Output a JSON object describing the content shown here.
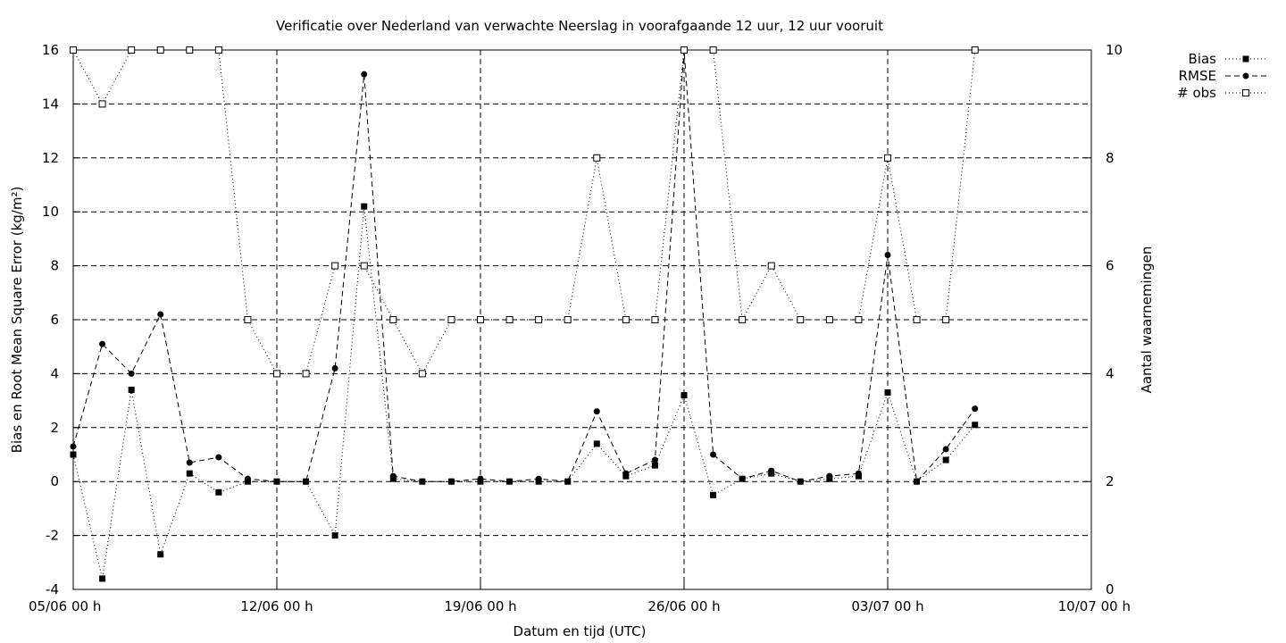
{
  "chart_data": {
    "type": "line",
    "title": "Verificatie over Nederland van verwachte Neerslag in voorafgaande 12 uur, 12 uur vooruit",
    "xlabel": "Datum en tijd (UTC)",
    "ylabel": "Bias en Root Mean Square Error (kg/m²)",
    "y2label": "Aantal waarnemingen",
    "xlim": [
      0,
      35
    ],
    "ylim": [
      -4,
      16
    ],
    "y2lim": [
      0,
      10
    ],
    "x_ticks": [
      {
        "x": 0,
        "label": "05/06 00 h"
      },
      {
        "x": 7,
        "label": "12/06 00 h"
      },
      {
        "x": 14,
        "label": "19/06 00 h"
      },
      {
        "x": 21,
        "label": "26/06 00 h"
      },
      {
        "x": 28,
        "label": "03/07 00 h"
      },
      {
        "x": 35,
        "label": "10/07 00 h"
      }
    ],
    "y_ticks": [
      -4,
      -2,
      0,
      2,
      4,
      6,
      8,
      10,
      12,
      14,
      16
    ],
    "y2_ticks": [
      0,
      2,
      4,
      6,
      8,
      10
    ],
    "grid": true,
    "legend_position": "top-right outside",
    "series": [
      {
        "name": "Bias",
        "axis": "left",
        "marker": "filled-square",
        "line": "dotted",
        "x": [
          0,
          1,
          2,
          3,
          4,
          5,
          6,
          7,
          8,
          9,
          10,
          11,
          12,
          13,
          14,
          15,
          16,
          17,
          18,
          19,
          20,
          21,
          22,
          23,
          24,
          25,
          26,
          27,
          28,
          29,
          30,
          31
        ],
        "values": [
          1.0,
          -3.6,
          3.4,
          -2.7,
          0.3,
          -0.4,
          0.0,
          0.0,
          0.0,
          -2.0,
          10.2,
          0.1,
          0.0,
          0.0,
          0.0,
          0.0,
          0.0,
          0.0,
          1.4,
          0.2,
          0.6,
          3.2,
          -0.5,
          0.1,
          0.3,
          0.0,
          0.1,
          0.2,
          3.3,
          0.0,
          0.8,
          2.1
        ]
      },
      {
        "name": "RMSE",
        "axis": "left",
        "marker": "filled-circle",
        "line": "dashed",
        "x": [
          0,
          1,
          2,
          3,
          4,
          5,
          6,
          7,
          8,
          9,
          10,
          11,
          12,
          13,
          14,
          15,
          16,
          17,
          18,
          19,
          20,
          21,
          22,
          23,
          24,
          25,
          26,
          27,
          28,
          29,
          30,
          31
        ],
        "values": [
          1.3,
          5.1,
          4.0,
          6.2,
          0.7,
          0.9,
          0.1,
          0.0,
          0.0,
          4.2,
          15.1,
          0.2,
          0.0,
          0.0,
          0.1,
          0.0,
          0.1,
          0.0,
          2.6,
          0.3,
          0.8,
          16.0,
          1.0,
          0.1,
          0.4,
          0.0,
          0.2,
          0.3,
          8.4,
          0.0,
          1.2,
          2.7
        ]
      },
      {
        "name": "# obs",
        "axis": "right",
        "marker": "open-square",
        "line": "dotted",
        "x": [
          0,
          1,
          2,
          3,
          4,
          5,
          6,
          7,
          8,
          9,
          10,
          11,
          12,
          13,
          14,
          15,
          16,
          17,
          18,
          19,
          20,
          21,
          22,
          23,
          24,
          25,
          26,
          27,
          28,
          29,
          30,
          31
        ],
        "values": [
          10,
          9,
          10,
          10,
          10,
          10,
          5,
          4,
          4,
          6,
          6,
          5,
          4,
          5,
          5,
          5,
          5,
          5,
          8,
          5,
          5,
          10,
          10,
          5,
          6,
          5,
          5,
          5,
          8,
          5,
          5,
          10
        ]
      }
    ]
  }
}
